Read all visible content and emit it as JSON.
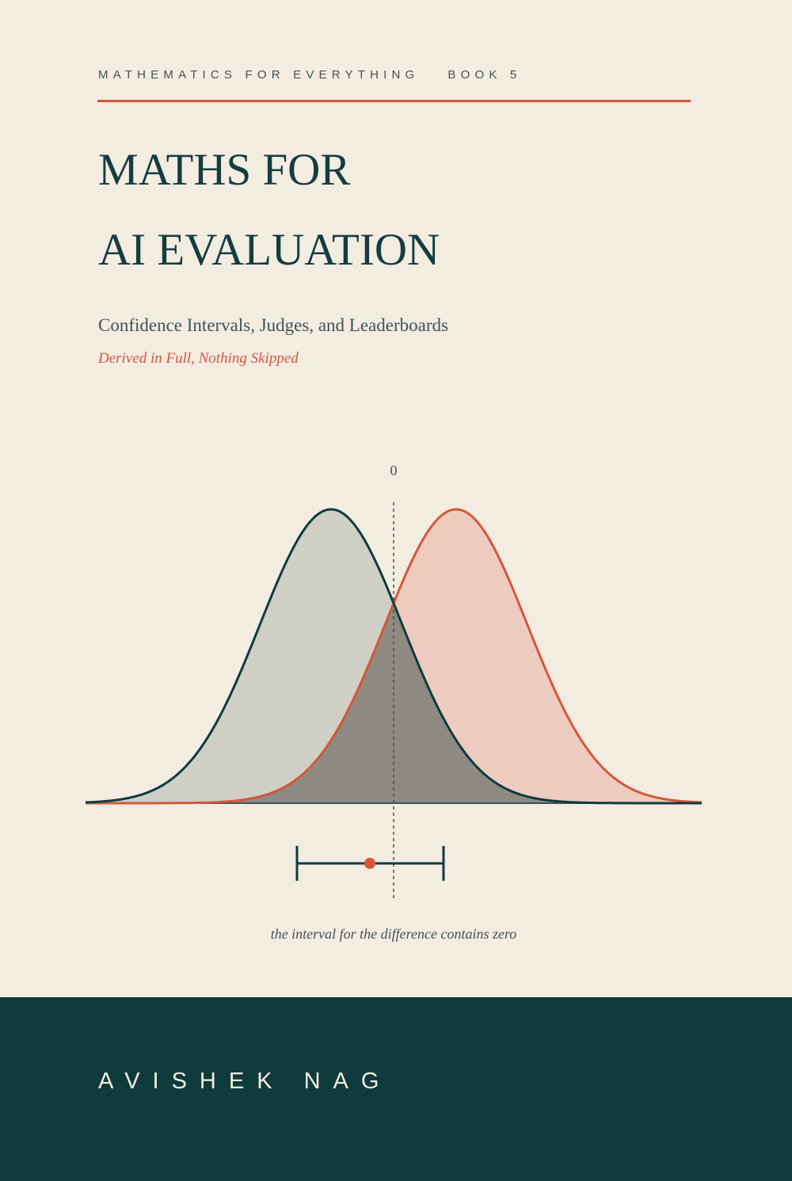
{
  "header": {
    "series": "MATHEMATICS FOR EVERYTHING",
    "book": "BOOK 5"
  },
  "title": {
    "line1": "MATHS FOR",
    "line2": "AI EVALUATION"
  },
  "subtitle": "Confidence Intervals, Judges, and Leaderboards",
  "tagline": "Derived in Full, Nothing Skipped",
  "figure": {
    "zero_label": "0",
    "caption": "the interval for the difference contains zero"
  },
  "author": "AVISHEK NAG",
  "colors": {
    "background": "#f3ece1",
    "accent": "#d4573c",
    "dark": "#0f3b3d",
    "text_muted": "#3f5357"
  }
}
